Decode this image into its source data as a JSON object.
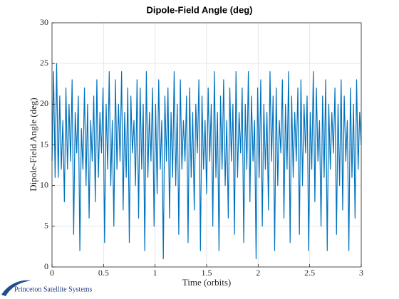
{
  "chart_data": {
    "type": "line",
    "title": "Dipole-Field Angle (deg)",
    "xlabel": "Time (orbits)",
    "ylabel": "Dipole-Field Angle (deg)",
    "footer": "Princeton Satellite Systems",
    "x": [
      0,
      0.015,
      0.03,
      0.045,
      0.06,
      0.075,
      0.09,
      0.105,
      0.12,
      0.135,
      0.15,
      0.165,
      0.18,
      0.195,
      0.21,
      0.225,
      0.24,
      0.255,
      0.27,
      0.285,
      0.3,
      0.315,
      0.33,
      0.345,
      0.36,
      0.375,
      0.39,
      0.405,
      0.42,
      0.435,
      0.45,
      0.465,
      0.48,
      0.495,
      0.51,
      0.525,
      0.54,
      0.555,
      0.57,
      0.585,
      0.6,
      0.615,
      0.63,
      0.645,
      0.66,
      0.675,
      0.69,
      0.705,
      0.72,
      0.735,
      0.75,
      0.765,
      0.78,
      0.795,
      0.81,
      0.825,
      0.84,
      0.855,
      0.87,
      0.885,
      0.9,
      0.915,
      0.93,
      0.945,
      0.96,
      0.975,
      0.99,
      1.005,
      1.02,
      1.035,
      1.05,
      1.065,
      1.08,
      1.095,
      1.11,
      1.125,
      1.14,
      1.155,
      1.17,
      1.185,
      1.2,
      1.215,
      1.23,
      1.245,
      1.26,
      1.275,
      1.29,
      1.305,
      1.32,
      1.335,
      1.35,
      1.365,
      1.38,
      1.395,
      1.41,
      1.425,
      1.44,
      1.455,
      1.47,
      1.485,
      1.5,
      1.515,
      1.53,
      1.545,
      1.56,
      1.575,
      1.59,
      1.605,
      1.62,
      1.635,
      1.65,
      1.665,
      1.68,
      1.695,
      1.71,
      1.725,
      1.74,
      1.755,
      1.77,
      1.785,
      1.8,
      1.815,
      1.83,
      1.845,
      1.86,
      1.875,
      1.89,
      1.905,
      1.92,
      1.935,
      1.95,
      1.965,
      1.98,
      1.995,
      2.01,
      2.025,
      2.04,
      2.055,
      2.07,
      2.085,
      2.1,
      2.115,
      2.13,
      2.145,
      2.16,
      2.175,
      2.19,
      2.205,
      2.22,
      2.235,
      2.25,
      2.265,
      2.28,
      2.295,
      2.31,
      2.325,
      2.34,
      2.355,
      2.37,
      2.385,
      2.4,
      2.415,
      2.43,
      2.445,
      2.46,
      2.475,
      2.49,
      2.505,
      2.52,
      2.535,
      2.55,
      2.565,
      2.58,
      2.595,
      2.61,
      2.625,
      2.64,
      2.655,
      2.67,
      2.685,
      2.7,
      2.715,
      2.73,
      2.745,
      2.76,
      2.775,
      2.79,
      2.805,
      2.82,
      2.835,
      2.85,
      2.865,
      2.88,
      2.895,
      2.91,
      2.925,
      2.94,
      2.955,
      2.97,
      2.985,
      3
    ],
    "series": [
      {
        "name": "Dipole-Field Angle",
        "color": "#0072bd",
        "values": [
          13,
          24,
          11,
          25,
          11,
          21,
          12,
          18,
          8,
          22,
          12,
          20,
          13,
          23,
          4,
          19,
          14,
          21,
          2,
          17,
          12,
          22,
          10,
          20,
          6,
          18,
          13,
          21,
          8,
          23,
          11,
          19,
          14,
          22,
          3,
          20,
          12,
          24,
          10,
          18,
          5,
          23,
          12,
          20,
          13,
          24,
          7,
          19,
          11,
          22,
          3,
          21,
          14,
          18,
          10,
          23,
          6,
          22,
          12,
          20,
          2,
          24,
          11,
          19,
          13,
          22,
          5,
          20,
          9,
          23,
          12,
          18,
          1,
          21,
          13,
          22,
          6,
          19,
          11,
          24,
          10,
          20,
          4,
          23,
          12,
          18,
          13,
          21,
          3,
          22,
          11,
          19,
          7,
          20,
          14,
          23,
          2,
          21,
          12,
          18,
          9,
          22,
          13,
          20,
          5,
          24,
          11,
          19,
          2,
          21,
          12,
          23,
          10,
          18,
          6,
          22,
          13,
          20,
          4,
          24,
          11,
          19,
          14,
          22,
          3,
          20,
          12,
          24,
          8,
          21,
          13,
          18,
          1,
          22,
          11,
          23,
          5,
          20,
          12,
          19,
          7,
          24,
          13,
          21,
          2,
          22,
          10,
          18,
          14,
          23,
          6,
          20,
          12,
          24,
          3,
          21,
          11,
          19,
          13,
          22,
          4,
          23,
          10,
          20,
          14,
          21,
          2,
          19,
          12,
          24,
          8,
          22,
          13,
          18,
          5,
          21,
          11,
          23,
          2,
          20,
          12,
          19,
          14,
          22,
          4,
          20,
          10,
          23,
          7,
          21,
          13,
          18,
          2,
          22,
          11,
          20,
          6,
          23,
          12,
          19,
          15
        ]
      }
    ],
    "xlim": [
      0,
      3
    ],
    "xticks": [
      0,
      0.5,
      1,
      1.5,
      2,
      2.5,
      3
    ],
    "ylim": [
      0,
      30
    ],
    "yticks": [
      0,
      5,
      10,
      15,
      20,
      25,
      30
    ],
    "grid": true
  }
}
